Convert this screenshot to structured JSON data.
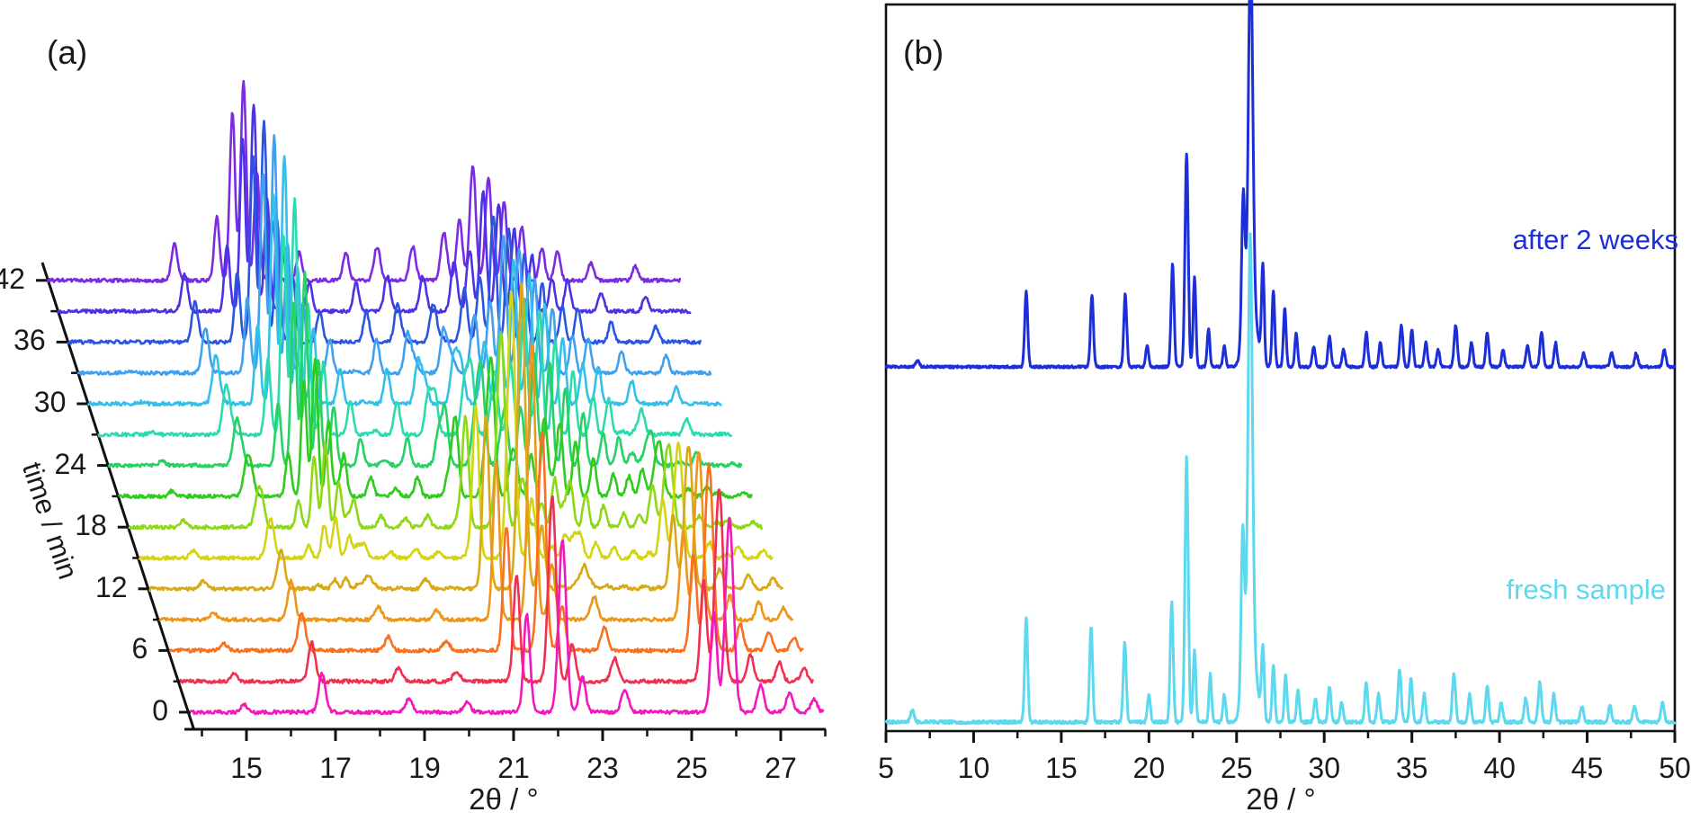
{
  "figure": {
    "background": "#ffffff",
    "axis_color": "#111111"
  },
  "chart_data": [
    {
      "id": "panel-a",
      "type": "line",
      "subtype": "3d-waterfall-xrd",
      "label": "(a)",
      "xlabel": "2θ / °",
      "ylabel": "time / min",
      "x_range": [
        13.5,
        28.0
      ],
      "x_major_ticks": [
        15,
        17,
        19,
        21,
        23,
        25,
        27
      ],
      "x_minor_ticks": [
        14,
        16,
        18,
        20,
        22,
        24,
        26,
        28
      ],
      "time_major_ticks": [
        0,
        6,
        12,
        18,
        24,
        30,
        36,
        42
      ],
      "time_minor_ticks": [
        3,
        9,
        15,
        21,
        27,
        33,
        39
      ],
      "times_min": [
        0,
        3,
        6,
        9,
        12,
        15,
        18,
        21,
        24,
        27,
        30,
        33,
        36,
        39,
        42
      ],
      "trace_colors": [
        "#F218BC",
        "#F03052",
        "#F9711F",
        "#EC961A",
        "#D9A816",
        "#D3D414",
        "#8FD816",
        "#2FCB1F",
        "#26D165",
        "#2BDBAD",
        "#32BFE8",
        "#3FA0F0",
        "#2B55DE",
        "#4B32E4",
        "#7B2BE2"
      ],
      "peak_format": "[two_theta_deg, relative_height, gaussian_width_deg]",
      "reactant_peaks": {
        "persistent": [
          [
            14.9,
            0.04,
            0.1
          ],
          [
            16.65,
            0.2,
            0.11
          ],
          [
            18.6,
            0.07,
            0.11
          ],
          [
            19.9,
            0.05,
            0.11
          ],
          [
            23.45,
            0.12,
            0.11
          ]
        ],
        "transient_21_22": [
          [
            21.25,
            0.5,
            0.1
          ],
          [
            22.05,
            0.88,
            0.12
          ],
          [
            22.5,
            0.18,
            0.1
          ]
        ],
        "early_25_26": [
          [
            25.45,
            0.52,
            0.1
          ],
          [
            25.8,
            1.0,
            0.13
          ],
          [
            26.5,
            0.14,
            0.1
          ],
          [
            27.15,
            0.1,
            0.1
          ],
          [
            27.7,
            0.07,
            0.1
          ]
        ]
      },
      "product_peaks": [
        [
          16.55,
          0.18,
          0.1
        ],
        [
          17.5,
          0.32,
          0.085
        ],
        [
          17.85,
          0.85,
          0.085
        ],
        [
          18.1,
          1.0,
          0.09
        ],
        [
          18.4,
          0.55,
          0.085
        ],
        [
          18.75,
          0.3,
          0.085
        ],
        [
          19.35,
          0.14,
          0.09
        ],
        [
          20.4,
          0.14,
          0.09
        ],
        [
          21.1,
          0.17,
          0.1
        ],
        [
          21.9,
          0.17,
          0.1
        ],
        [
          22.6,
          0.24,
          0.1
        ],
        [
          22.95,
          0.3,
          0.095
        ],
        [
          23.25,
          0.58,
          0.095
        ],
        [
          23.6,
          0.52,
          0.095
        ],
        [
          23.95,
          0.4,
          0.09
        ],
        [
          24.35,
          0.27,
          0.09
        ],
        [
          24.8,
          0.16,
          0.09
        ],
        [
          25.15,
          0.15,
          0.09
        ],
        [
          25.9,
          0.09,
          0.09
        ],
        [
          26.9,
          0.07,
          0.09
        ]
      ],
      "kinetics": {
        "product_onset_min": 9,
        "product_duration_min": 21,
        "reactant_decay_onset_min": 12,
        "reactant_decay_duration_min": 27,
        "early_decay_onset_min": 3,
        "early_decay_duration_min": 27,
        "transient_boost_amp": 0.8,
        "transient_boost_center_min": 12,
        "transient_boost_width_min": 6,
        "crystallinity_boost_amp": 0.3,
        "crystallinity_boost_center_min": 28,
        "crystallinity_boost_width_min": 9
      }
    },
    {
      "id": "panel-b",
      "type": "line",
      "subtype": "powder-xrd",
      "label": "(b)",
      "xlabel": "2θ / °",
      "x_range": [
        5,
        50
      ],
      "x_major_ticks": [
        5,
        10,
        15,
        20,
        25,
        30,
        35,
        40,
        45,
        50
      ],
      "x_minor_ticks": [
        7.5,
        12.5,
        17.5,
        22.5,
        27.5,
        32.5,
        37.5,
        42.5,
        47.5
      ],
      "peak_format": "[two_theta_deg, relative_height, gaussian_width_deg]",
      "series": [
        {
          "name": "after 2 weeks",
          "color": "#1B2ED8",
          "broad_base_peak": [
            25.8,
            0.22,
            0.45
          ],
          "peaks": [
            [
              6.8,
              0.02,
              0.15
            ],
            [
              13.0,
              0.22,
              0.12
            ],
            [
              16.75,
              0.21,
              0.12
            ],
            [
              18.65,
              0.21,
              0.12
            ],
            [
              19.9,
              0.06,
              0.12
            ],
            [
              21.35,
              0.3,
              0.12
            ],
            [
              22.15,
              0.62,
              0.13
            ],
            [
              22.6,
              0.26,
              0.11
            ],
            [
              23.4,
              0.11,
              0.11
            ],
            [
              24.3,
              0.06,
              0.11
            ],
            [
              25.38,
              0.42,
              0.13
            ],
            [
              25.8,
              1.0,
              0.17
            ],
            [
              26.5,
              0.28,
              0.11
            ],
            [
              27.1,
              0.22,
              0.11
            ],
            [
              27.75,
              0.17,
              0.11
            ],
            [
              28.4,
              0.1,
              0.11
            ],
            [
              29.4,
              0.06,
              0.12
            ],
            [
              30.3,
              0.09,
              0.12
            ],
            [
              31.1,
              0.05,
              0.12
            ],
            [
              32.4,
              0.1,
              0.12
            ],
            [
              33.2,
              0.07,
              0.12
            ],
            [
              34.4,
              0.12,
              0.13
            ],
            [
              35.0,
              0.11,
              0.12
            ],
            [
              35.8,
              0.07,
              0.12
            ],
            [
              36.5,
              0.05,
              0.12
            ],
            [
              37.5,
              0.12,
              0.13
            ],
            [
              38.4,
              0.07,
              0.12
            ],
            [
              39.3,
              0.1,
              0.12
            ],
            [
              40.2,
              0.05,
              0.12
            ],
            [
              41.6,
              0.06,
              0.13
            ],
            [
              42.4,
              0.1,
              0.13
            ],
            [
              43.2,
              0.07,
              0.12
            ],
            [
              44.8,
              0.04,
              0.13
            ],
            [
              46.4,
              0.04,
              0.13
            ],
            [
              47.8,
              0.04,
              0.13
            ],
            [
              49.4,
              0.05,
              0.13
            ]
          ]
        },
        {
          "name": "fresh sample",
          "color": "#5CD8EF",
          "broad_base_peak": [
            25.78,
            0.22,
            0.45
          ],
          "peaks": [
            [
              6.5,
              0.03,
              0.15
            ],
            [
              13.0,
              0.26,
              0.12
            ],
            [
              16.7,
              0.24,
              0.12
            ],
            [
              18.62,
              0.2,
              0.12
            ],
            [
              20.0,
              0.07,
              0.12
            ],
            [
              21.3,
              0.3,
              0.12
            ],
            [
              22.15,
              0.66,
              0.13
            ],
            [
              22.6,
              0.18,
              0.11
            ],
            [
              23.5,
              0.12,
              0.11
            ],
            [
              24.3,
              0.07,
              0.11
            ],
            [
              25.35,
              0.4,
              0.13
            ],
            [
              25.78,
              1.0,
              0.17
            ],
            [
              26.5,
              0.18,
              0.11
            ],
            [
              27.1,
              0.14,
              0.11
            ],
            [
              27.8,
              0.12,
              0.11
            ],
            [
              28.5,
              0.08,
              0.11
            ],
            [
              29.5,
              0.06,
              0.12
            ],
            [
              30.3,
              0.09,
              0.12
            ],
            [
              31.0,
              0.05,
              0.12
            ],
            [
              32.4,
              0.1,
              0.12
            ],
            [
              33.1,
              0.07,
              0.12
            ],
            [
              34.3,
              0.13,
              0.13
            ],
            [
              34.95,
              0.11,
              0.12
            ],
            [
              35.7,
              0.07,
              0.12
            ],
            [
              37.4,
              0.12,
              0.13
            ],
            [
              38.3,
              0.07,
              0.12
            ],
            [
              39.3,
              0.09,
              0.12
            ],
            [
              40.1,
              0.05,
              0.12
            ],
            [
              41.5,
              0.06,
              0.13
            ],
            [
              42.3,
              0.1,
              0.13
            ],
            [
              43.1,
              0.07,
              0.12
            ],
            [
              44.7,
              0.04,
              0.13
            ],
            [
              46.3,
              0.04,
              0.13
            ],
            [
              47.7,
              0.04,
              0.13
            ],
            [
              49.3,
              0.05,
              0.13
            ]
          ]
        }
      ]
    }
  ]
}
